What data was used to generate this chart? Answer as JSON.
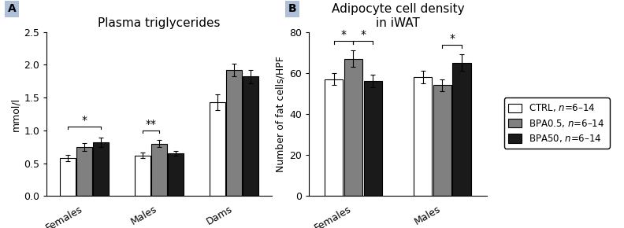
{
  "panel_a": {
    "title": "Plasma triglycerides",
    "ylabel": "mmol/l",
    "ylim": [
      0,
      2.5
    ],
    "yticks": [
      0.0,
      0.5,
      1.0,
      1.5,
      2.0,
      2.5
    ],
    "groups": [
      "Females",
      "Males",
      "Dams"
    ],
    "values": {
      "CTRL": [
        0.58,
        0.62,
        1.43
      ],
      "BPA05": [
        0.75,
        0.8,
        1.92
      ],
      "BPA50": [
        0.82,
        0.65,
        1.82
      ]
    },
    "errors": {
      "CTRL": [
        0.05,
        0.04,
        0.12
      ],
      "BPA05": [
        0.06,
        0.05,
        0.1
      ],
      "BPA50": [
        0.07,
        0.04,
        0.1
      ]
    }
  },
  "panel_b": {
    "title": "Adipocyte cell density\nin iWAT",
    "ylabel": "Number of fat cells/HPF",
    "ylim": [
      0,
      80
    ],
    "yticks": [
      0,
      20,
      40,
      60,
      80
    ],
    "groups": [
      "Females",
      "Males"
    ],
    "values": {
      "CTRL": [
        57,
        58
      ],
      "BPA05": [
        67,
        54
      ],
      "BPA50": [
        56,
        65
      ]
    },
    "errors": {
      "CTRL": [
        3,
        3
      ],
      "BPA05": [
        4,
        3
      ],
      "BPA50": [
        3,
        4
      ]
    }
  },
  "legend_colors": [
    "white",
    "#808080",
    "#1a1a1a"
  ],
  "bar_colors": [
    "white",
    "#808080",
    "#1a1a1a"
  ],
  "bar_edgecolor": "black",
  "panel_label_bg": "#b0c0d8",
  "panel_label_fontsize": 10,
  "title_fontsize": 11,
  "tick_fontsize": 9,
  "ylabel_fontsize": 9,
  "group_fontsize": 9,
  "bar_width": 0.22,
  "capsize": 2
}
